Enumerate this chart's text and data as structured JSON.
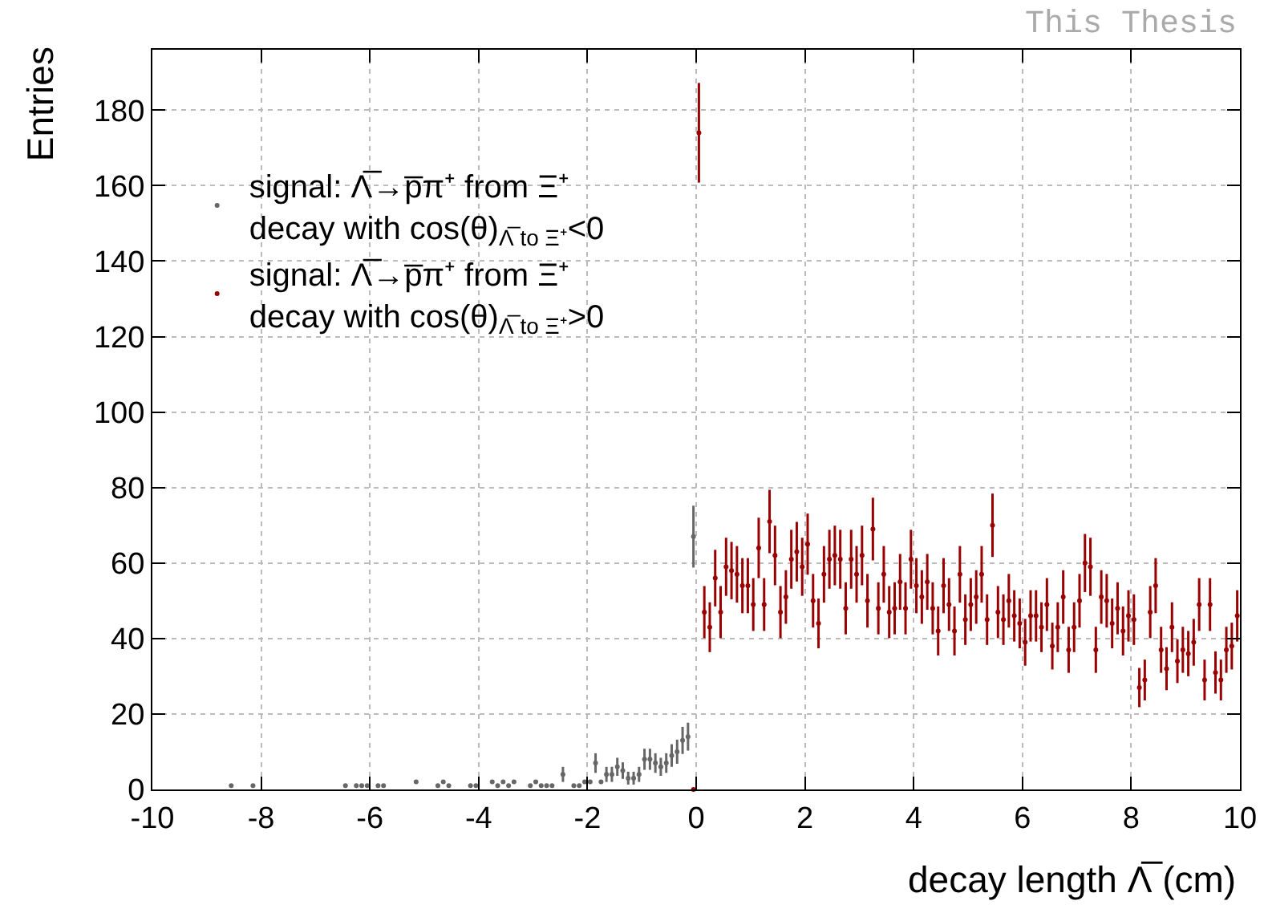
{
  "chart_data": {
    "type": "scatter",
    "xlabel": "decay length Λ̅ (cm)",
    "ylabel": "Entries",
    "annotations": [
      "This Thesis"
    ],
    "xlim": [
      -10,
      10
    ],
    "xticks": [
      -10,
      -8,
      -6,
      -4,
      -2,
      0,
      2,
      4,
      6,
      8,
      10
    ],
    "ylim": [
      0,
      196
    ],
    "yticks": [
      0,
      20,
      40,
      60,
      80,
      100,
      120,
      140,
      160,
      180
    ],
    "grid": true,
    "legend": "top left",
    "marker": "circle",
    "series": [
      {
        "name": "signal: Λ̅→p̅π⁺ from Ξ⁺\ndecay with cos(θ)$_{Λ̅ to Ξ⁺}$<0",
        "color": "#666666",
        "x": [
          -8.55,
          -8.15,
          -6.45,
          -6.25,
          -6.15,
          -6.05,
          -5.85,
          -5.75,
          -5.15,
          -4.75,
          -4.65,
          -4.55,
          -4.15,
          -4.05,
          -3.75,
          -3.65,
          -3.55,
          -3.45,
          -3.35,
          -3.05,
          -2.95,
          -2.85,
          -2.75,
          -2.65,
          -2.45,
          -2.25,
          -2.15,
          -2.05,
          -1.95,
          -1.85,
          -1.75,
          -1.65,
          -1.55,
          -1.45,
          -1.35,
          -1.25,
          -1.15,
          -1.05,
          -0.95,
          -0.85,
          -0.75,
          -0.65,
          -0.55,
          -0.45,
          -0.35,
          -0.25,
          -0.15,
          -0.05
        ],
        "values": [
          1,
          1,
          1,
          1,
          1,
          1,
          1,
          1,
          2,
          1,
          2,
          1,
          1,
          1,
          2,
          1,
          2,
          1,
          2,
          1,
          2,
          1,
          1,
          1,
          4,
          1,
          1,
          2,
          2,
          7,
          2,
          4,
          4,
          6,
          5,
          3,
          3,
          4,
          8,
          8,
          7,
          6,
          7,
          9,
          10,
          13,
          14,
          67
        ],
        "errors": [
          null,
          null,
          null,
          null,
          null,
          null,
          null,
          null,
          null,
          null,
          null,
          null,
          null,
          null,
          null,
          null,
          null,
          null,
          null,
          null,
          null,
          null,
          null,
          null,
          2,
          null,
          null,
          null,
          null,
          2.6,
          null,
          2,
          2,
          2.4,
          2.2,
          1.7,
          1.7,
          2,
          2.8,
          2.8,
          2.6,
          2.4,
          2.6,
          3,
          3.2,
          3.6,
          3.7,
          8.2
        ]
      },
      {
        "name": "signal: Λ̅→p̅π⁺ from Ξ⁺\ndecay with cos(θ)$_{Λ̅ to Ξ⁺}$>0",
        "color": "#990000",
        "x": [
          -0.05,
          0.05,
          0.15,
          0.25,
          0.35,
          0.45,
          0.55,
          0.65,
          0.75,
          0.85,
          0.95,
          1.05,
          1.15,
          1.25,
          1.35,
          1.45,
          1.55,
          1.65,
          1.75,
          1.85,
          1.95,
          2.05,
          2.15,
          2.25,
          2.35,
          2.45,
          2.55,
          2.65,
          2.75,
          2.85,
          2.95,
          3.05,
          3.15,
          3.25,
          3.35,
          3.45,
          3.55,
          3.65,
          3.75,
          3.85,
          3.95,
          4.05,
          4.15,
          4.25,
          4.35,
          4.45,
          4.55,
          4.65,
          4.75,
          4.85,
          4.95,
          5.05,
          5.15,
          5.25,
          5.35,
          5.45,
          5.55,
          5.65,
          5.75,
          5.85,
          5.95,
          6.05,
          6.15,
          6.25,
          6.35,
          6.45,
          6.55,
          6.65,
          6.75,
          6.85,
          6.95,
          7.05,
          7.15,
          7.25,
          7.35,
          7.45,
          7.55,
          7.65,
          7.75,
          7.85,
          7.95,
          8.05,
          8.15,
          8.25,
          8.35,
          8.45,
          8.55,
          8.65,
          8.75,
          8.85,
          8.95,
          9.05,
          9.15,
          9.25,
          9.35,
          9.45,
          9.55,
          9.65,
          9.75,
          9.85,
          9.95
        ],
        "values": [
          0,
          174,
          47,
          43,
          56,
          47,
          59,
          58,
          57,
          54,
          54,
          49,
          64,
          49,
          71,
          62,
          47,
          51,
          61,
          63,
          59,
          65,
          50,
          44,
          57,
          61,
          62,
          61,
          48,
          61,
          57,
          62,
          50,
          69,
          48,
          57,
          47,
          48,
          55,
          48,
          61,
          54,
          51,
          55,
          48,
          42,
          54,
          49,
          42,
          57,
          45,
          49,
          51,
          57,
          45,
          70,
          47,
          45,
          50,
          46,
          44,
          39,
          46,
          46,
          43,
          49,
          38,
          43,
          51,
          37,
          43,
          50,
          60,
          59,
          37,
          51,
          50,
          44,
          48,
          42,
          46,
          45,
          27,
          29,
          47,
          54,
          37,
          32,
          43,
          34,
          37,
          36,
          39,
          49,
          29,
          49,
          31,
          29,
          37,
          38,
          46
        ],
        "errors": [
          null,
          13.2,
          6.9,
          6.6,
          7.5,
          6.9,
          7.7,
          7.6,
          7.5,
          7.3,
          7.3,
          7,
          8,
          7,
          8.4,
          7.9,
          6.9,
          7.1,
          7.8,
          7.9,
          7.7,
          8.1,
          7.1,
          6.6,
          7.5,
          7.8,
          7.9,
          7.8,
          6.9,
          7.8,
          7.5,
          7.9,
          7.1,
          8.3,
          6.9,
          7.5,
          6.9,
          6.9,
          7.4,
          6.9,
          7.8,
          7.3,
          7.1,
          7.4,
          6.9,
          6.5,
          7.3,
          7,
          6.5,
          7.5,
          6.7,
          7,
          7.1,
          7.5,
          6.7,
          8.4,
          6.9,
          6.7,
          7.1,
          6.8,
          6.6,
          6.2,
          6.8,
          6.8,
          6.6,
          7,
          6.2,
          6.6,
          7.1,
          6.1,
          6.6,
          7.1,
          7.7,
          7.7,
          6.1,
          7.1,
          7.1,
          6.6,
          6.9,
          6.5,
          6.8,
          6.7,
          5.2,
          5.4,
          6.9,
          7.3,
          6.1,
          5.7,
          6.6,
          5.8,
          6.1,
          6,
          6.2,
          7,
          5.4,
          7,
          5.6,
          5.4,
          6.1,
          6.2,
          6.8
        ]
      }
    ]
  }
}
